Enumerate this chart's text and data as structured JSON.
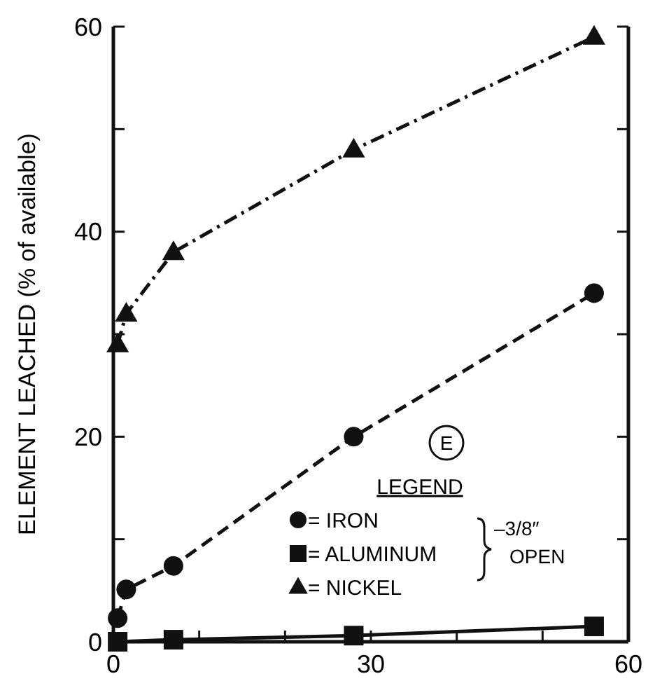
{
  "chart_data": {
    "type": "line",
    "ylabel": "ELEMENT LEACHED (% of available)",
    "legend_title": "LEGEND",
    "xlim": [
      0,
      60
    ],
    "xticks": [
      0,
      {
        "value": 10,
        "label": null
      },
      {
        "value": 20,
        "label": null
      },
      30,
      {
        "value": 40,
        "label": null
      },
      {
        "value": 50,
        "label": null
      },
      60
    ],
    "ylim": [
      0,
      60
    ],
    "yticks": [
      0,
      {
        "value": 10,
        "label": null
      },
      20,
      {
        "value": 30,
        "label": null
      },
      40,
      {
        "value": 50,
        "label": null
      },
      60
    ],
    "grid": false,
    "legend": "bottom right",
    "annotations": [
      "E",
      "–3/8″ OPEN"
    ],
    "series": [
      {
        "name": "= IRON",
        "color": "#111111",
        "marker": "circle",
        "line_style": "dashed",
        "x": [
          0.5,
          1.5,
          7,
          28,
          56
        ],
        "values": [
          2.3,
          5.1,
          7.4,
          20,
          34
        ]
      },
      {
        "name": "= ALUMINUM",
        "color": "#111111",
        "marker": "square",
        "line_style": "solid",
        "x": [
          0.5,
          7,
          28,
          56
        ],
        "values": [
          0,
          0.2,
          0.6,
          1.5
        ]
      },
      {
        "name": "= NICKEL",
        "color": "#111111",
        "marker": "triangle",
        "line_style": "dashdot",
        "x": [
          0.5,
          1.5,
          7,
          28,
          56
        ],
        "values": [
          29,
          32,
          38,
          48,
          59
        ]
      }
    ]
  }
}
